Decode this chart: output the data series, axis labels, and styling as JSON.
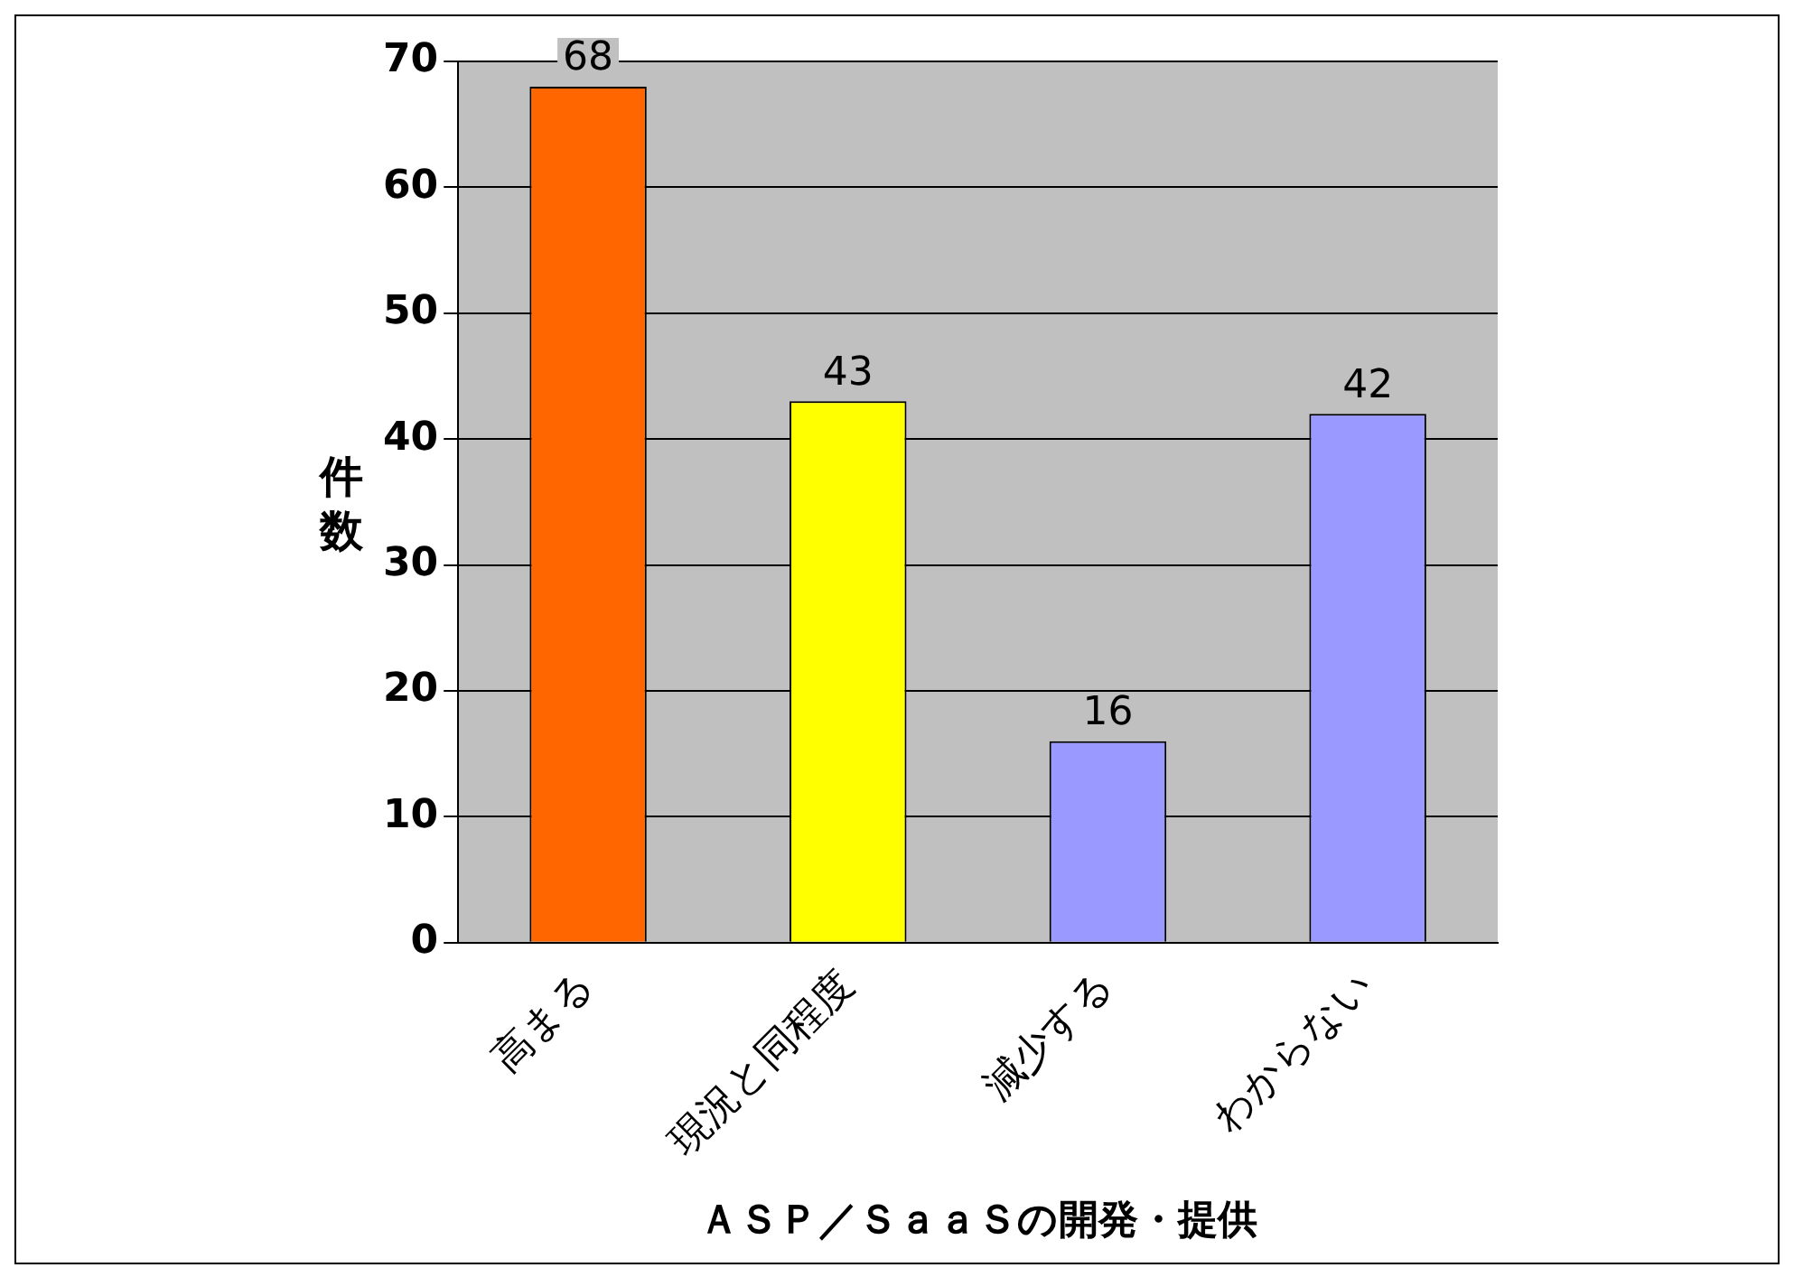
{
  "chart_data": {
    "type": "bar",
    "xlabel": "ＡＳＰ／ＳａａＳの開発・提供",
    "ylabel": "件数",
    "categories": [
      "高まる",
      "現況と同程度",
      "減少する",
      "わからない"
    ],
    "values": [
      68,
      43,
      16,
      42
    ],
    "colors": [
      "#ff6600",
      "#ffff00",
      "#9999ff",
      "#9999ff"
    ],
    "ylim": [
      0,
      70
    ],
    "yticks": [
      0,
      10,
      20,
      30,
      40,
      50,
      60,
      70
    ],
    "grid": "y",
    "data_labels": true,
    "legend": false
  }
}
